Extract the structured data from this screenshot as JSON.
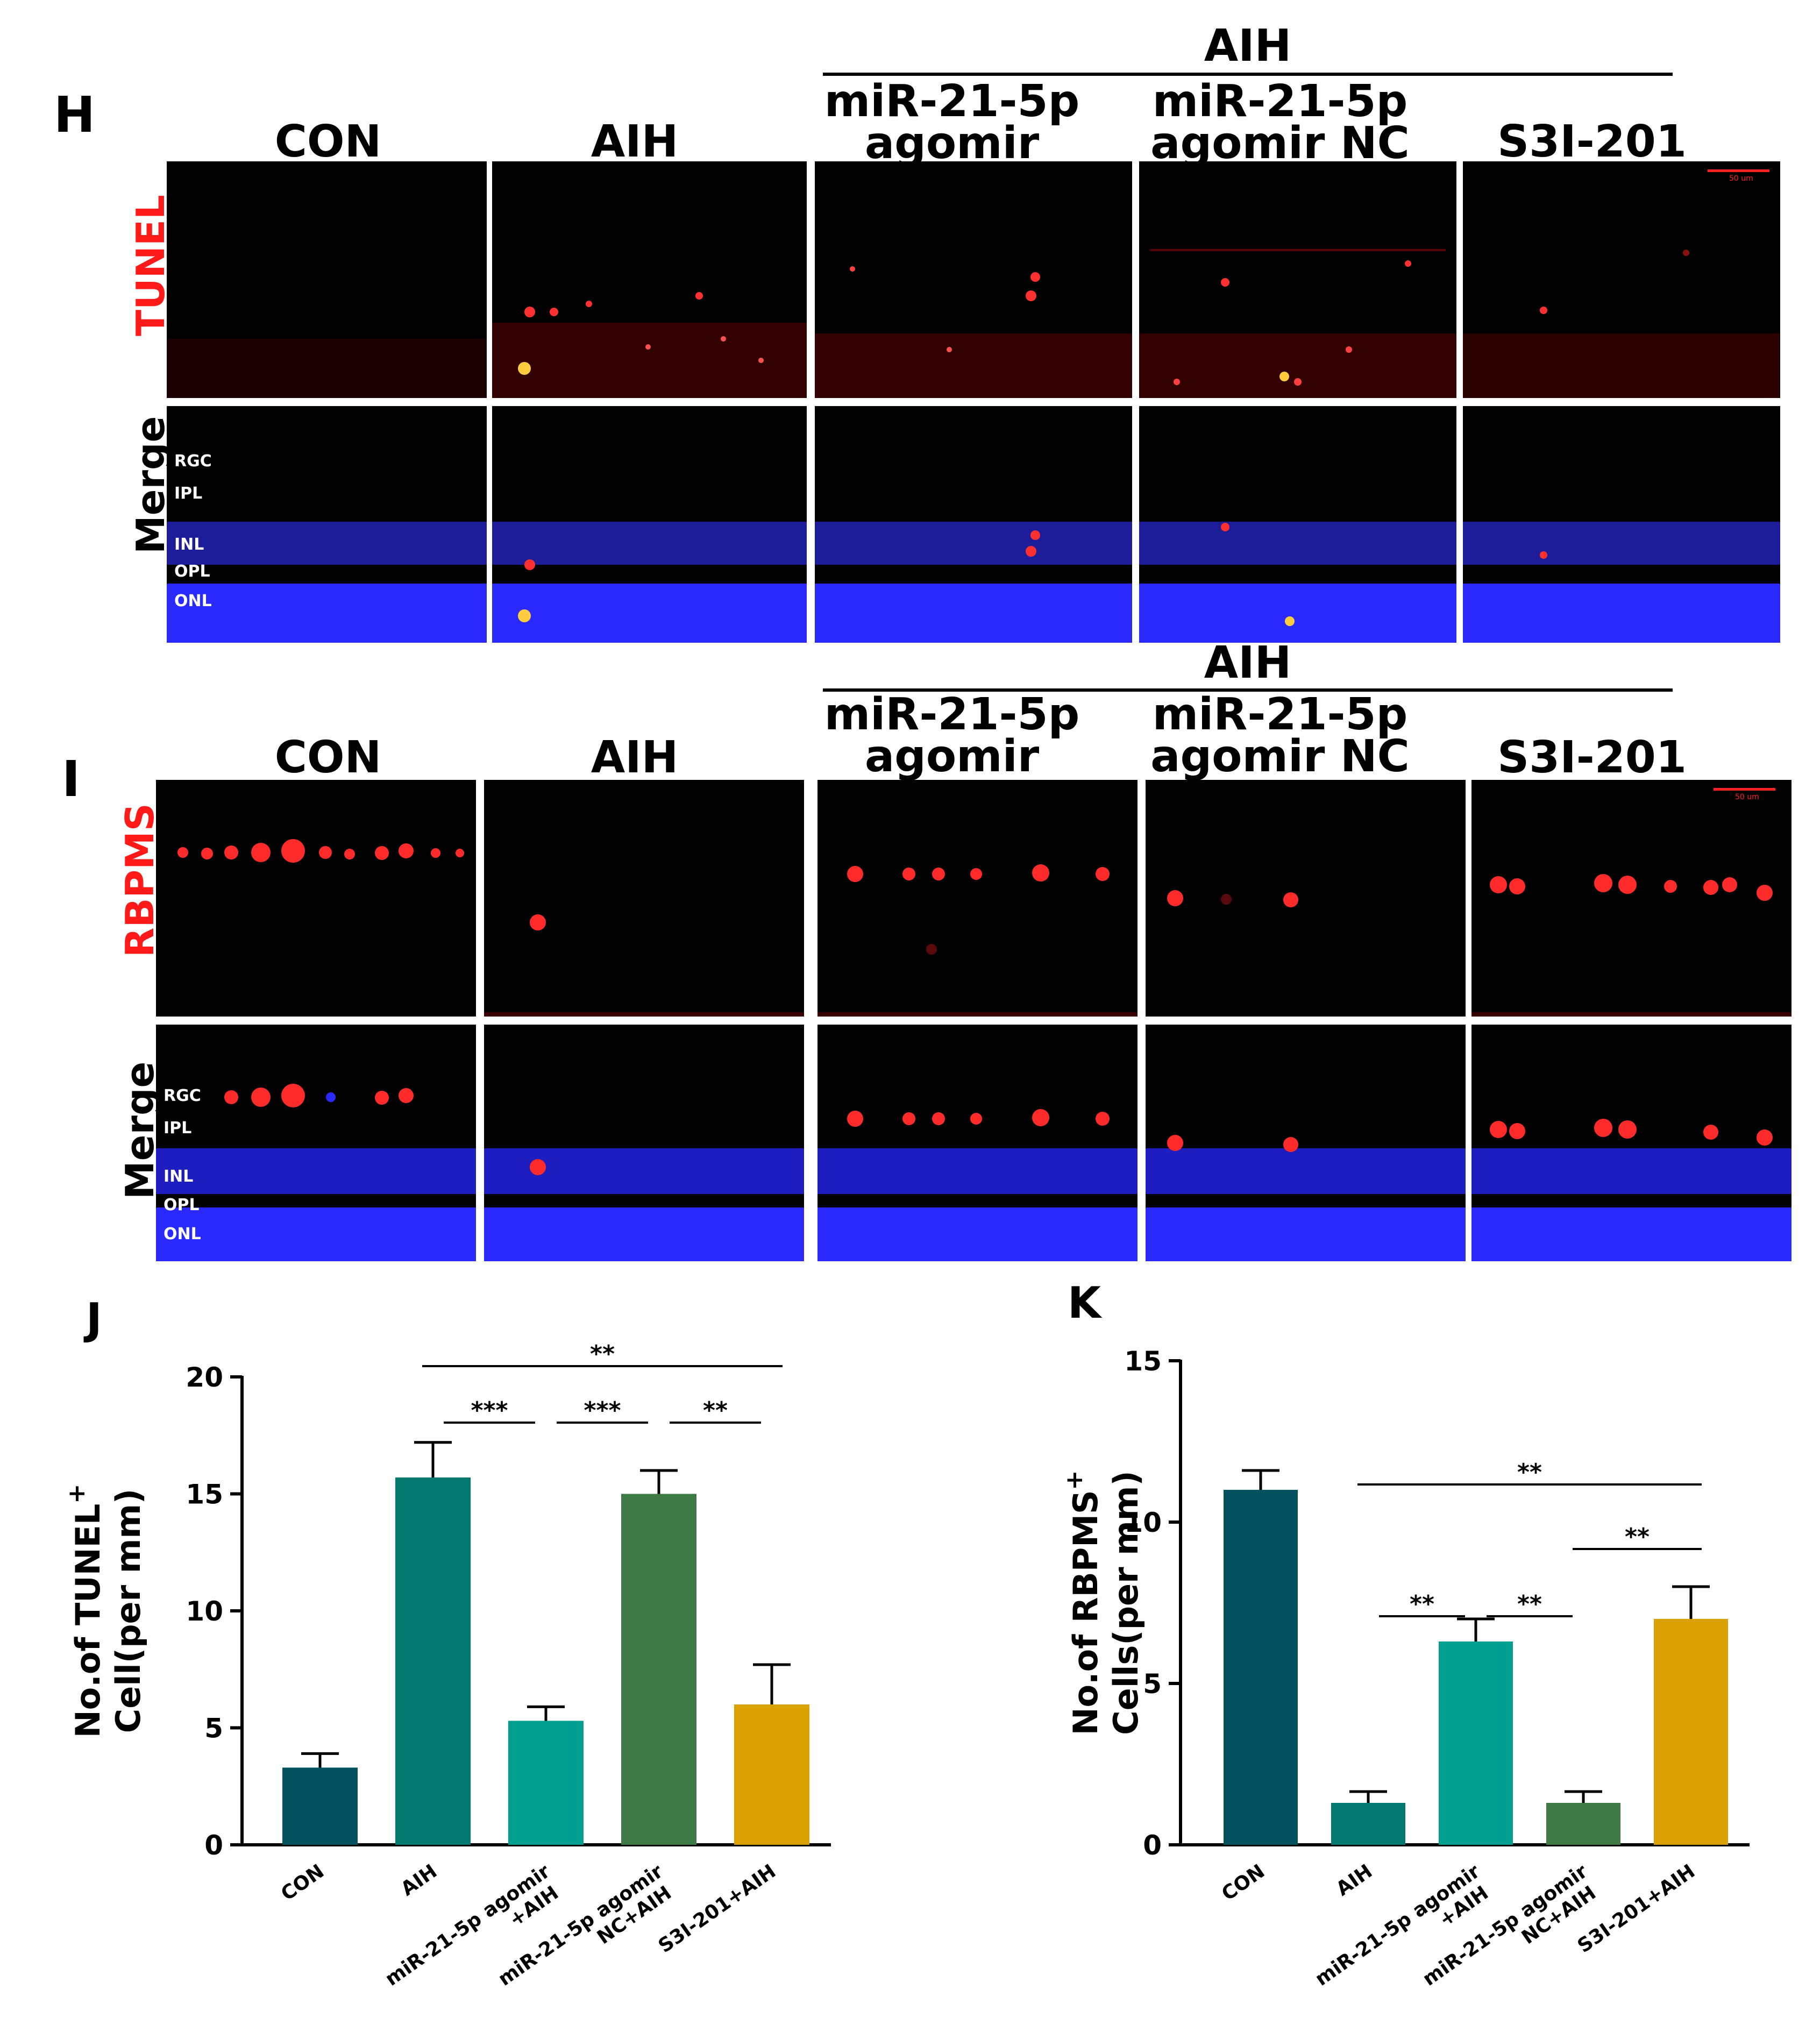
{
  "top_figure": {
    "panel_letter": "H",
    "group_label": "AIH",
    "columns": [
      "CON",
      "AIH",
      "miR-21-5p\nagomir",
      "miR-21-5p\nagomir NC",
      "S3I-201"
    ],
    "row_labels": [
      "TUNEL",
      "Merge"
    ],
    "layer_labels": [
      "RGC",
      "IPL",
      "INL",
      "OPL",
      "ONL"
    ],
    "scale_text": "50 um"
  },
  "mid_figure": {
    "panel_letter": "I",
    "group_label": "AIH",
    "columns": [
      "CON",
      "AIH",
      "miR-21-5p\nagomir",
      "miR-21-5p\nagomir NC",
      "S3I-201"
    ],
    "row_labels": [
      "RBPMS",
      "Merge"
    ],
    "layer_labels": [
      "RGC",
      "IPL",
      "INL",
      "OPL",
      "ONL"
    ],
    "scale_text": "50 um"
  },
  "colors": {
    "stain_red": "#ff1a1a",
    "nuclei_blue": "#1a1aff",
    "bar_con": "#03505e",
    "bar_aih": "#02786f",
    "bar_agomir": "#00a090",
    "bar_nc": "#3e7a46",
    "bar_s3i": "#dba100"
  },
  "chart_data": [
    {
      "panel_letter": "J",
      "type": "bar",
      "categories": [
        "CON",
        "AIH",
        "miR-21-5p agomir\n+AIH",
        "miR-21-5p agomir\nNC+AIH",
        "S3I-201+AIH"
      ],
      "values": [
        3.3,
        15.7,
        5.3,
        15.0,
        6.0
      ],
      "errors": [
        0.6,
        1.5,
        0.6,
        1.0,
        1.7
      ],
      "ylabel_line1": "No.of TUNEL",
      "ylabel_sup": "+",
      "ylabel_line2": "Cell(per mm)",
      "ylim": [
        0,
        20
      ],
      "yticks": [
        0,
        5,
        10,
        15,
        20
      ],
      "significance": [
        {
          "from": 1,
          "to": 4,
          "label": "**",
          "level": 2
        },
        {
          "from": 1,
          "to": 2,
          "label": "***",
          "level": 1
        },
        {
          "from": 2,
          "to": 3,
          "label": "***",
          "level": 1
        },
        {
          "from": 3,
          "to": 4,
          "label": "**",
          "level": 1
        }
      ]
    },
    {
      "panel_letter": "K",
      "type": "bar",
      "categories": [
        "CON",
        "AIH",
        "miR-21-5p agomir\n+AIH",
        "miR-21-5p agomir\nNC+AIH",
        "S3I-201+AIH"
      ],
      "values": [
        11.0,
        1.3,
        6.3,
        1.3,
        7.0
      ],
      "errors": [
        0.6,
        0.35,
        0.7,
        0.35,
        1.0
      ],
      "ylabel_line1": "No.of RBPMS",
      "ylabel_sup": "+",
      "ylabel_line2": "Cells(per mm)",
      "ylim": [
        0,
        15
      ],
      "yticks": [
        0,
        5,
        10,
        15
      ],
      "significance": [
        {
          "from": 1,
          "to": 4,
          "label": "**",
          "level": 3
        },
        {
          "from": 1,
          "to": 2,
          "label": "**",
          "level": 1
        },
        {
          "from": 2,
          "to": 3,
          "label": "**",
          "level": 1
        },
        {
          "from": 3,
          "to": 4,
          "label": "**",
          "level": 2
        }
      ]
    }
  ]
}
